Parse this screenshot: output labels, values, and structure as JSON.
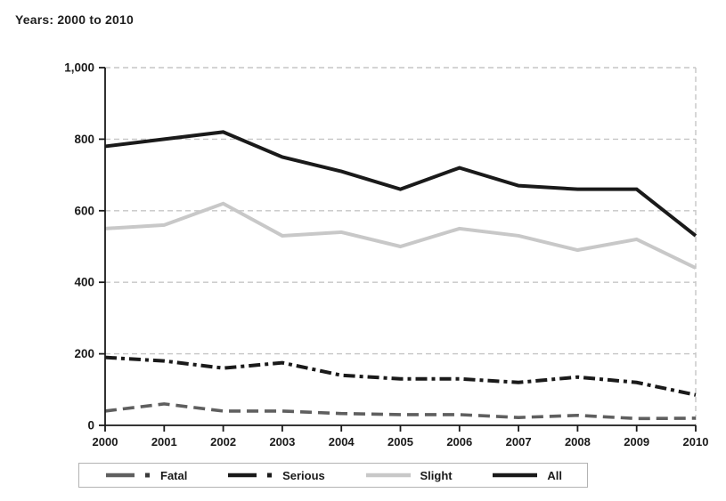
{
  "title": "Years: 2000 to 2010",
  "chart_data": {
    "type": "line",
    "x": [
      2000,
      2001,
      2002,
      2003,
      2004,
      2005,
      2006,
      2007,
      2008,
      2009,
      2010
    ],
    "x_tick_labels": [
      "2000",
      "2001",
      "2002",
      "2003",
      "2004",
      "2005",
      "2006",
      "2007",
      "2008",
      "2009",
      "2010"
    ],
    "series": [
      {
        "name": "Fatal",
        "color": "#5f5f5f",
        "dot_color": "#3a3a3a",
        "style": "dashed",
        "values": [
          40,
          60,
          40,
          40,
          33,
          30,
          30,
          22,
          28,
          19,
          20
        ]
      },
      {
        "name": "Serious",
        "color": "#1a1a1a",
        "dot_color": "#1a1a1a",
        "style": "dash-dot",
        "values": [
          190,
          180,
          160,
          175,
          140,
          130,
          130,
          120,
          135,
          120,
          85
        ]
      },
      {
        "name": "Slight",
        "color": "#c8c8c8",
        "dot_color": "#c8c8c8",
        "style": "solid",
        "values": [
          550,
          560,
          620,
          530,
          540,
          500,
          550,
          530,
          490,
          520,
          440
        ]
      },
      {
        "name": "All",
        "color": "#1a1a1a",
        "dot_color": "#1a1a1a",
        "style": "solid",
        "values": [
          780,
          800,
          820,
          750,
          710,
          660,
          720,
          670,
          660,
          660,
          530
        ]
      }
    ],
    "ylim": [
      0,
      1000
    ],
    "yticks": [
      0,
      200,
      400,
      600,
      800,
      1000
    ],
    "ytick_labels": [
      "0",
      "200",
      "400",
      "600",
      "800",
      "1,000"
    ],
    "grid": "horizontal dashed gridlines at each y tick, dashed vertical line at right edge",
    "gridline_color": "#c6c6c6",
    "axis_color": "#1a1a1a",
    "legend_position": "bottom"
  }
}
